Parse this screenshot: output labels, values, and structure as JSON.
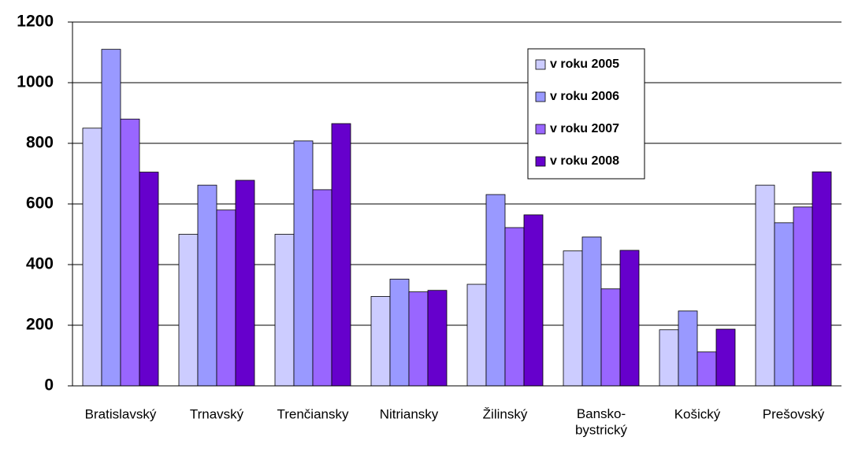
{
  "chart_data": {
    "type": "bar",
    "categories": [
      "Bratislavský",
      "Trnavský",
      "Trenčiansky",
      "Nitriansky",
      "Žilinský",
      "Bansko-\nbystrický",
      "Košický",
      "Prešovský"
    ],
    "series": [
      {
        "name": "v roku 2005",
        "color": "#ccccff",
        "values": [
          850,
          500,
          500,
          295,
          335,
          445,
          185,
          662
        ]
      },
      {
        "name": "v roku 2006",
        "color": "#9999ff",
        "values": [
          1110,
          662,
          808,
          352,
          631,
          491,
          247,
          538
        ]
      },
      {
        "name": "v roku 2007",
        "color": "#9966ff",
        "values": [
          880,
          580,
          647,
          310,
          522,
          320,
          112,
          590
        ]
      },
      {
        "name": "v roku 2008",
        "color": "#6600cc",
        "values": [
          705,
          678,
          865,
          315,
          564,
          447,
          187,
          706
        ]
      }
    ],
    "ylim": [
      0,
      1200
    ],
    "yticks": [
      0,
      200,
      400,
      600,
      800,
      1000,
      1200
    ],
    "grid": true,
    "legend": "top-right"
  }
}
